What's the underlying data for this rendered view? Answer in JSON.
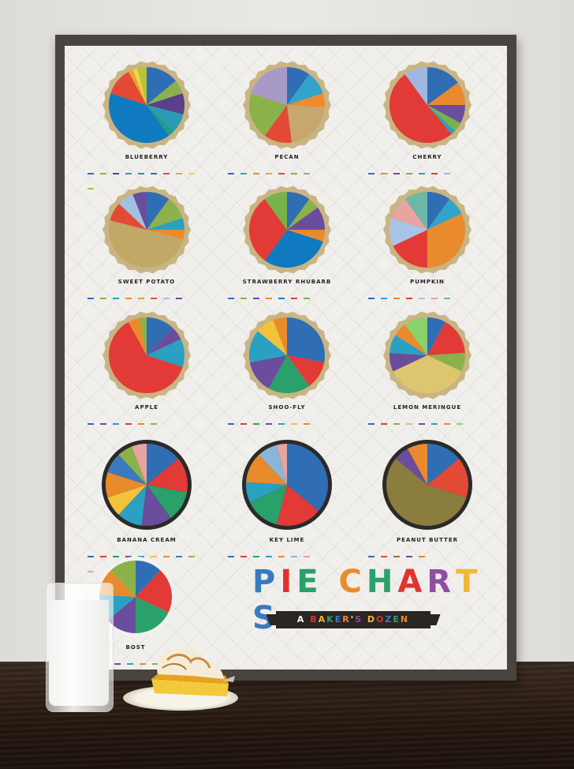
{
  "poster": {
    "title_letters": [
      {
        "ch": "P",
        "color": "#3a7bbf"
      },
      {
        "ch": "I",
        "color": "#e0332f"
      },
      {
        "ch": "E",
        "color": "#2aa06b"
      },
      {
        "ch": " ",
        "color": "#000000"
      },
      {
        "ch": "C",
        "color": "#e98a2c"
      },
      {
        "ch": "H",
        "color": "#2aa06b"
      },
      {
        "ch": "A",
        "color": "#e0332f"
      },
      {
        "ch": "R",
        "color": "#8e4ea3"
      },
      {
        "ch": "T",
        "color": "#f0b73a"
      },
      {
        "ch": "S",
        "color": "#3a7bbf"
      }
    ],
    "subtitle_letters": [
      {
        "ch": "A",
        "color": "#ffffff"
      },
      {
        "ch": " ",
        "color": "#ffffff"
      },
      {
        "ch": "B",
        "color": "#e0332f"
      },
      {
        "ch": "A",
        "color": "#f0b73a"
      },
      {
        "ch": "K",
        "color": "#2aa06b"
      },
      {
        "ch": "E",
        "color": "#3a7bbf"
      },
      {
        "ch": "R",
        "color": "#e98a2c"
      },
      {
        "ch": "'",
        "color": "#ffffff"
      },
      {
        "ch": "S",
        "color": "#8e4ea3"
      },
      {
        "ch": " ",
        "color": "#ffffff"
      },
      {
        "ch": "D",
        "color": "#f0b73a"
      },
      {
        "ch": "O",
        "color": "#e0332f"
      },
      {
        "ch": "Z",
        "color": "#3a7bbf"
      },
      {
        "ch": "E",
        "color": "#2aa06b"
      },
      {
        "ch": "N",
        "color": "#e98a2c"
      }
    ]
  },
  "pies": [
    {
      "label": "BLUEBERRY",
      "crust": "#c9b483",
      "values": [
        {
          "c": "#2f6db5",
          "v": 14
        },
        {
          "c": "#8bb24a",
          "v": 6
        },
        {
          "c": "#5a3f8c",
          "v": 9
        },
        {
          "c": "#2a9bb5",
          "v": 8
        },
        {
          "c": "#1e9d8a",
          "v": 3
        },
        {
          "c": "#0f7abf",
          "v": 40
        },
        {
          "c": "#e24a35",
          "v": 12
        },
        {
          "c": "#e9a22f",
          "v": 2
        },
        {
          "c": "#f1d34a",
          "v": 2
        },
        {
          "c": "#b5c43b",
          "v": 4
        }
      ]
    },
    {
      "label": "PECAN",
      "crust": "#c9b483",
      "values": [
        {
          "c": "#2f6db5",
          "v": 10
        },
        {
          "c": "#32a3c9",
          "v": 10
        },
        {
          "c": "#f08a2c",
          "v": 6
        },
        {
          "c": "#c6a86f",
          "v": 22
        },
        {
          "c": "#e24a35",
          "v": 12
        },
        {
          "c": "#8bb24a",
          "v": 20
        },
        {
          "c": "#a89ac8",
          "v": 20
        }
      ]
    },
    {
      "label": "CHERRY",
      "crust": "#c9b483",
      "values": [
        {
          "c": "#2f6db5",
          "v": 15
        },
        {
          "c": "#e98a2c",
          "v": 10
        },
        {
          "c": "#6a4d9c",
          "v": 8
        },
        {
          "c": "#7ab24a",
          "v": 4
        },
        {
          "c": "#2aa0c2",
          "v": 2
        },
        {
          "c": "#e23a36",
          "v": 51
        },
        {
          "c": "#9fb8df",
          "v": 10
        }
      ]
    },
    {
      "label": "SWEET POTATO",
      "crust": "#c9b483",
      "values": [
        {
          "c": "#2f6db5",
          "v": 10
        },
        {
          "c": "#8bb24a",
          "v": 10
        },
        {
          "c": "#2aa0c2",
          "v": 5
        },
        {
          "c": "#e98a2c",
          "v": 4
        },
        {
          "c": "#c2a866",
          "v": 50
        },
        {
          "c": "#e24a35",
          "v": 8
        },
        {
          "c": "#a0c2e0",
          "v": 7
        },
        {
          "c": "#6a4d9c",
          "v": 6
        }
      ]
    },
    {
      "label": "STRAWBERRY RHUBARB",
      "crust": "#c9b483",
      "values": [
        {
          "c": "#2f6db5",
          "v": 10
        },
        {
          "c": "#8bb24a",
          "v": 5
        },
        {
          "c": "#6a4d9c",
          "v": 10
        },
        {
          "c": "#e98a2c",
          "v": 5
        },
        {
          "c": "#0f7abf",
          "v": 30
        },
        {
          "c": "#e23a36",
          "v": 30
        },
        {
          "c": "#7ab24a",
          "v": 10
        }
      ]
    },
    {
      "label": "PUMPKIN",
      "crust": "#c9b483",
      "values": [
        {
          "c": "#2f6db5",
          "v": 10
        },
        {
          "c": "#32a3c9",
          "v": 8
        },
        {
          "c": "#e98a2c",
          "v": 32
        },
        {
          "c": "#e23a36",
          "v": 18
        },
        {
          "c": "#a8c4e6",
          "v": 12
        },
        {
          "c": "#e7a4a1",
          "v": 10
        },
        {
          "c": "#6fb7a6",
          "v": 10
        }
      ]
    },
    {
      "label": "APPLE",
      "crust": "#c9b483",
      "values": [
        {
          "c": "#2f6db5",
          "v": 12
        },
        {
          "c": "#6a4d9c",
          "v": 6
        },
        {
          "c": "#2aa0c2",
          "v": 12
        },
        {
          "c": "#e23a36",
          "v": 62
        },
        {
          "c": "#e98a2c",
          "v": 5
        },
        {
          "c": "#8bb24a",
          "v": 3
        }
      ]
    },
    {
      "label": "SHOO-FLY",
      "crust": "#c9b483",
      "values": [
        {
          "c": "#2f6db5",
          "v": 28
        },
        {
          "c": "#e23a36",
          "v": 12
        },
        {
          "c": "#2aa06b",
          "v": 18
        },
        {
          "c": "#6a4d9c",
          "v": 14
        },
        {
          "c": "#2aa0c2",
          "v": 14
        },
        {
          "c": "#f0c33a",
          "v": 8
        },
        {
          "c": "#e98a2c",
          "v": 6
        }
      ]
    },
    {
      "label": "LEMON MERINGUE",
      "crust": "#c9b483",
      "values": [
        {
          "c": "#2f6db5",
          "v": 8
        },
        {
          "c": "#e23a36",
          "v": 16
        },
        {
          "c": "#8bb24a",
          "v": 8
        },
        {
          "c": "#dcc66e",
          "v": 36
        },
        {
          "c": "#6a4d9c",
          "v": 8
        },
        {
          "c": "#2aa0c2",
          "v": 8
        },
        {
          "c": "#e98a2c",
          "v": 6
        },
        {
          "c": "#8bd16a",
          "v": 10
        }
      ]
    },
    {
      "label": "BANANA CREAM",
      "crust": "#2b2a28",
      "values": [
        {
          "c": "#2f6db5",
          "v": 14
        },
        {
          "c": "#e23a36",
          "v": 14
        },
        {
          "c": "#2aa06b",
          "v": 12
        },
        {
          "c": "#6a4d9c",
          "v": 12
        },
        {
          "c": "#2aa0c2",
          "v": 10
        },
        {
          "c": "#f0c33a",
          "v": 8
        },
        {
          "c": "#e98a2c",
          "v": 10
        },
        {
          "c": "#3a7bbf",
          "v": 8
        },
        {
          "c": "#8bb24a",
          "v": 6
        },
        {
          "c": "#e7a4a1",
          "v": 6
        }
      ]
    },
    {
      "label": "KEY LIME",
      "crust": "#2b2a28",
      "values": [
        {
          "c": "#2f6db5",
          "v": 36
        },
        {
          "c": "#e23a36",
          "v": 18
        },
        {
          "c": "#2aa06b",
          "v": 14
        },
        {
          "c": "#2aa0c2",
          "v": 8
        },
        {
          "c": "#e98a2c",
          "v": 12
        },
        {
          "c": "#8ab5d6",
          "v": 8
        },
        {
          "c": "#e7a4a1",
          "v": 4
        }
      ]
    },
    {
      "label": "PEANUT BUTTER",
      "crust": "#2b2a28",
      "values": [
        {
          "c": "#2f6db5",
          "v": 14
        },
        {
          "c": "#e24a35",
          "v": 16
        },
        {
          "c": "#8a7d3e",
          "v": 56
        },
        {
          "c": "#6a4d9c",
          "v": 6
        },
        {
          "c": "#e98a2c",
          "v": 8
        }
      ]
    },
    {
      "label": "BOST",
      "crust": "#f2f1ef",
      "values": [
        {
          "c": "#2f6db5",
          "v": 12
        },
        {
          "c": "#e23a36",
          "v": 20
        },
        {
          "c": "#2aa06b",
          "v": 18
        },
        {
          "c": "#6a4d9c",
          "v": 14
        },
        {
          "c": "#2aa0c2",
          "v": 12
        },
        {
          "c": "#e98a2c",
          "v": 12
        },
        {
          "c": "#8bb24a",
          "v": 12
        }
      ]
    }
  ]
}
